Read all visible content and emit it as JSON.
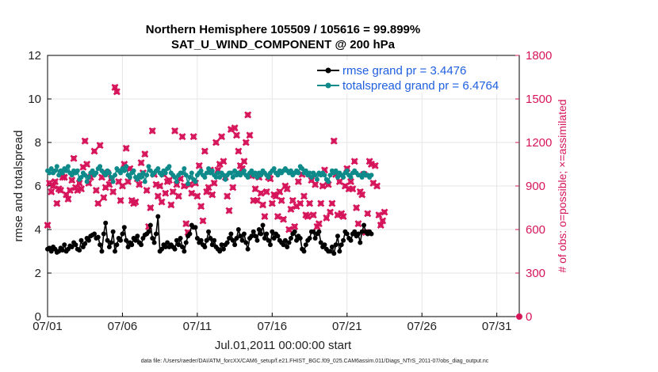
{
  "chart_data": {
    "type": "line",
    "title": "Northern Hemisphere 105509 / 105616 = 99.899%",
    "subtitle": "SAT_U_WIND_COMPONENT @ 200 hPa",
    "xlabel": "Jul.01,2011 00:00:00 start",
    "ylabel": "rmse and totalspread",
    "ylabel_right": "# of obs: o=possible; ×=assimilated",
    "xlim": [
      0,
      31.5
    ],
    "ylim": [
      0,
      12
    ],
    "ylim_right": [
      0,
      1800
    ],
    "x_tick_labels": [
      "07/01",
      "07/06",
      "07/11",
      "07/16",
      "07/21",
      "07/26",
      "07/31"
    ],
    "x_tick_days": [
      0,
      5,
      10,
      15,
      20,
      25,
      30
    ],
    "y_ticks": [
      "0",
      "2",
      "4",
      "6",
      "8",
      "10",
      "12"
    ],
    "y_ticks_right": [
      "0",
      "300",
      "600",
      "900",
      "1200",
      "1500",
      "1800"
    ],
    "step_days": 0.125,
    "series": [
      {
        "name": "rmse grand pr = 3.4476",
        "color": "#000000",
        "values": [
          3.1,
          3.15,
          3.0,
          3.2,
          3.1,
          2.95,
          3.0,
          3.15,
          3.05,
          3.3,
          3.0,
          3.1,
          3.25,
          3.2,
          3.4,
          3.3,
          3.1,
          3.05,
          3.5,
          3.2,
          3.35,
          3.6,
          3.5,
          3.7,
          3.75,
          3.8,
          3.6,
          3.65,
          3.3,
          3.0,
          3.8,
          4.3,
          3.5,
          3.2,
          3.4,
          3.9,
          3.0,
          3.3,
          3.6,
          3.5,
          3.8,
          4.1,
          3.5,
          3.2,
          3.4,
          3.3,
          3.6,
          3.5,
          3.7,
          3.4,
          3.3,
          3.6,
          3.75,
          3.8,
          3.9,
          4.2,
          3.6,
          3.4,
          3.8,
          4.6,
          3.0,
          3.1,
          3.3,
          3.2,
          3.4,
          3.2,
          3.3,
          3.2,
          3.1,
          3.5,
          3.3,
          3.6,
          3.2,
          3.0,
          3.4,
          3.7,
          3.8,
          4.2,
          4.1,
          4.1,
          3.6,
          3.4,
          3.5,
          3.3,
          3.2,
          3.5,
          3.9,
          3.6,
          3.3,
          3.5,
          3.2,
          3.1,
          3.0,
          3.3,
          3.1,
          3.3,
          3.4,
          3.6,
          3.8,
          3.5,
          3.3,
          3.6,
          4.0,
          3.7,
          3.5,
          3.8,
          3.4,
          3.1,
          3.6,
          3.7,
          3.9,
          3.7,
          3.5,
          4.0,
          3.8,
          4.2,
          3.6,
          3.8,
          3.5,
          3.3,
          3.9,
          3.6,
          3.8,
          3.7,
          3.5,
          3.4,
          3.3,
          3.5,
          3.2,
          3.4,
          3.6,
          3.8,
          3.9,
          3.5,
          3.7,
          3.6,
          3.1,
          3.0,
          3.3,
          3.5,
          3.6,
          3.9,
          3.9,
          3.6,
          3.8,
          3.9,
          3.4,
          3.2,
          3.3,
          3.1,
          3.0,
          3.0,
          3.2,
          2.9,
          3.3,
          3.7,
          3.0,
          3.3,
          3.5,
          3.9,
          3.8,
          3.6,
          3.5,
          3.8,
          3.9,
          3.7,
          3.8,
          3.4,
          3.9,
          4.2,
          3.9,
          3.8,
          3.9,
          3.8
        ]
      },
      {
        "name": "totalspread grand pr = 6.4764",
        "color": "#0e8a8a",
        "values": [
          6.7,
          6.6,
          6.8,
          6.6,
          6.7,
          6.9,
          6.5,
          6.7,
          6.6,
          6.8,
          6.7,
          6.9,
          6.6,
          6.5,
          6.7,
          6.6,
          6.7,
          6.3,
          6.4,
          6.6,
          6.5,
          6.2,
          6.4,
          6.6,
          6.7,
          6.5,
          6.6,
          6.8,
          6.9,
          6.7,
          6.6,
          6.5,
          6.7,
          6.6,
          6.4,
          6.2,
          6.5,
          6.8,
          6.7,
          6.6,
          6.8,
          6.7,
          6.9,
          6.5,
          6.4,
          6.6,
          6.7,
          6.4,
          6.3,
          6.5,
          6.4,
          6.6,
          6.2,
          6.5,
          6.9,
          6.7,
          6.5,
          6.6,
          6.7,
          6.8,
          6.6,
          6.5,
          6.7,
          6.6,
          6.8,
          6.9,
          6.6,
          6.5,
          6.4,
          6.2,
          6.5,
          6.6,
          6.6,
          6.8,
          6.5,
          6.1,
          6.4,
          6.6,
          6.3,
          6.2,
          6.5,
          6.6,
          6.7,
          6.5,
          6.4,
          6.6,
          6.8,
          6.6,
          6.7,
          6.5,
          6.4,
          6.6,
          6.4,
          6.6,
          6.5,
          6.3,
          6.5,
          6.6,
          6.6,
          6.4,
          6.7,
          6.5,
          6.6,
          6.5,
          6.6,
          6.7,
          6.5,
          6.4,
          6.6,
          6.7,
          6.5,
          6.6,
          6.4,
          6.6,
          6.5,
          6.7,
          6.6,
          6.5,
          6.4,
          6.6,
          6.7,
          6.8,
          6.6,
          6.5,
          6.7,
          6.6,
          6.7,
          6.8,
          6.7,
          6.6,
          6.7,
          6.5,
          6.6,
          6.7,
          6.6,
          6.9,
          6.8,
          6.6,
          6.7,
          6.5,
          6.6,
          6.4,
          6.6,
          6.5,
          6.3,
          6.6,
          6.5,
          6.6,
          6.5,
          6.3,
          6.2,
          6.5,
          6.7,
          6.6,
          6.7,
          6.4,
          6.6,
          6.5,
          6.4,
          6.6,
          6.7,
          6.5,
          6.4,
          6.6,
          6.7,
          6.6,
          6.5,
          6.5,
          6.4,
          6.6,
          6.5,
          6.5,
          6.4,
          6.5
        ]
      },
      {
        "name": "assimilated",
        "axis": "right",
        "color": "#d6145a",
        "values": [
          630,
          920,
          860,
          900,
          930,
          780,
          880,
          870,
          960,
          960,
          840,
          810,
          870,
          940,
          1090,
          890,
          870,
          920,
          880,
          1030,
          1210,
          1050,
          920,
          960,
          980,
          1140,
          870,
          780,
          1180,
          960,
          820,
          890,
          990,
          910,
          950,
          860,
          1580,
          1550,
          930,
          800,
          900,
          1050,
          1160,
          930,
          1020,
          800,
          780,
          790,
          950,
          910,
          1060,
          990,
          1120,
          870,
          620,
          750,
          1280,
          980,
          910,
          830,
          900,
          790,
          980,
          850,
          930,
          940,
          770,
          860,
          1280,
          910,
          830,
          950,
          1240,
          900,
          640,
          580,
          910,
          850,
          1240,
          920,
          830,
          1040,
          760,
          660,
          1140,
          860,
          890,
          1010,
          840,
          920,
          1200,
          1010,
          1050,
          1240,
          1070,
          960,
          830,
          730,
          1290,
          890,
          1300,
          1250,
          1140,
          1040,
          1020,
          1070,
          1200,
          1390,
          1250,
          970,
          800,
          880,
          800,
          960,
          850,
          770,
          690,
          860,
          960,
          950,
          780,
          840,
          830,
          690,
          860,
          800,
          670,
          900,
          880,
          600,
          740,
          800,
          620,
          760,
          930,
          780,
          980,
          830,
          700,
          690,
          780,
          940,
          700,
          910,
          620,
          640,
          780,
          900,
          1010,
          680,
          910,
          720,
          780,
          1210,
          980,
          700,
          930,
          710,
          690,
          900,
          1020,
          880,
          930,
          880,
          1070,
          750,
          640,
          860,
          840,
          980,
          580,
          710,
          1070,
          1050,
          920,
          1040,
          900,
          700,
          630,
          660,
          720
        ]
      },
      {
        "name": "possible",
        "axis": "right",
        "color": "#d6145a",
        "values": [
          630,
          920,
          860,
          900,
          930,
          780,
          880,
          870,
          960,
          960,
          840,
          810,
          870,
          940,
          1090,
          890,
          870,
          920,
          880,
          1030,
          1210,
          1050,
          920,
          960,
          980,
          1140,
          870,
          780,
          1180,
          960,
          820,
          890,
          990,
          910,
          950,
          860,
          1580,
          1550,
          930,
          800,
          900,
          1050,
          1160,
          930,
          1020,
          800,
          780,
          790,
          950,
          910,
          1060,
          990,
          1120,
          870,
          620,
          750,
          1280,
          980,
          910,
          830,
          900,
          790,
          980,
          850,
          930,
          940,
          770,
          860,
          1280,
          910,
          830,
          950,
          1240,
          900,
          640,
          580,
          910,
          850,
          1240,
          920,
          830,
          1040,
          760,
          660,
          1140,
          860,
          890,
          1010,
          840,
          920,
          1200,
          1010,
          1050,
          1240,
          1070,
          960,
          830,
          730,
          1290,
          890,
          1300,
          1250,
          1140,
          1040,
          1020,
          1070,
          1200,
          1390,
          1250,
          970,
          800,
          880,
          800,
          960,
          850,
          770,
          690,
          860,
          960,
          950,
          780,
          840,
          830,
          690,
          860,
          800,
          670,
          900,
          880,
          600,
          740,
          800,
          620,
          760,
          930,
          780,
          980,
          830,
          700,
          690,
          780,
          940,
          700,
          910,
          620,
          640,
          780,
          900,
          1010,
          680,
          910,
          720,
          780,
          1210,
          980,
          700,
          930,
          710,
          690,
          900,
          1020,
          880,
          930,
          880,
          1070,
          750,
          640,
          860,
          840,
          980,
          580,
          710,
          1070,
          1050,
          920,
          1040,
          900,
          700,
          630,
          660,
          720
        ]
      }
    ],
    "legend": [
      "rmse grand pr = 3.4476",
      "totalspread grand pr = 6.4764"
    ],
    "legend_position": "top-right",
    "grid": true,
    "footnote": "data file: /Users/raeder/DAI/ATM_forcXX/CAM6_setup/f.e21.FHIST_BGC.f09_025.CAM6assim.011/Diags_NTrS_2011-07/obs_diag_output.nc"
  }
}
